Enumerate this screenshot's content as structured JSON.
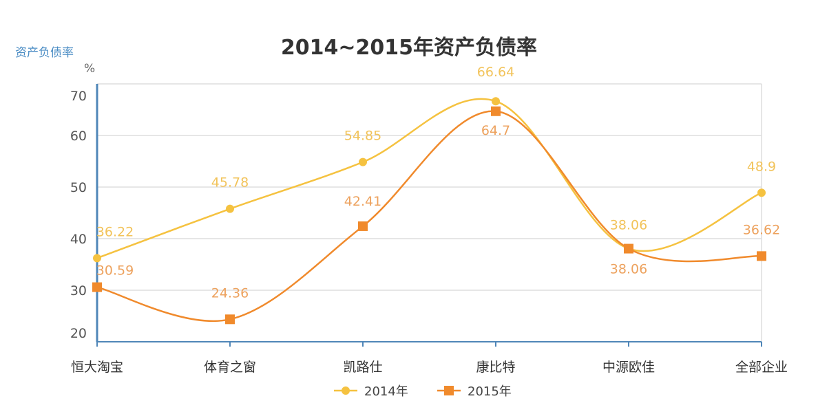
{
  "chart_data": {
    "type": "line",
    "title": "2014~2015年资产负债率",
    "ylabel": "资产负债率",
    "yunit": "%",
    "xlabel": "",
    "categories": [
      "恒大淘宝",
      "体育之窗",
      "凯路仕",
      "康比特",
      "中源欧佳",
      "全部企业"
    ],
    "ylim": [
      20,
      70
    ],
    "yticks": [
      20,
      30,
      40,
      50,
      60,
      70
    ],
    "grid": true,
    "smooth": true,
    "legend": "bottom",
    "series": [
      {
        "name": "2014年",
        "values": [
          36.22,
          45.78,
          54.85,
          66.64,
          38.06,
          48.9
        ],
        "color": "#f5c240",
        "label_color": "#f2c35a",
        "marker": "circle"
      },
      {
        "name": "2015年",
        "values": [
          30.59,
          24.36,
          42.41,
          64.7,
          38.06,
          36.62
        ],
        "color": "#f08a2c",
        "label_color": "#eda25e",
        "marker": "square"
      }
    ]
  }
}
